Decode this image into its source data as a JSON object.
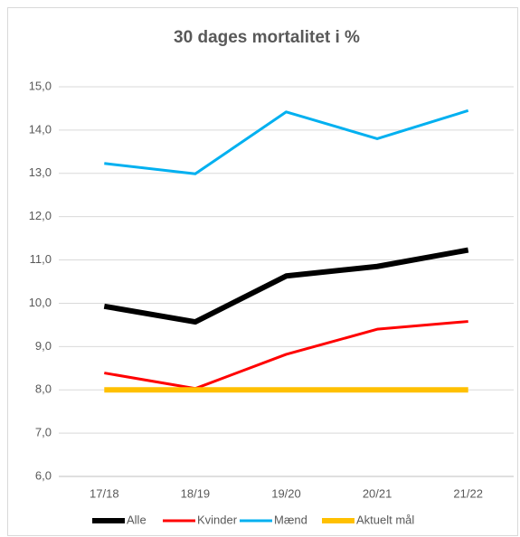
{
  "chart_data": {
    "type": "line",
    "title": "30 dages mortalitet i %",
    "categories": [
      "17/18",
      "18/19",
      "19/20",
      "20/21",
      "21/22"
    ],
    "series": [
      {
        "name": "Alle",
        "color": "#000000",
        "values": [
          9.93,
          9.57,
          10.63,
          10.85,
          11.23
        ]
      },
      {
        "name": "Kvinder",
        "color": "#ff0000",
        "values": [
          8.39,
          8.03,
          8.82,
          9.4,
          9.58
        ]
      },
      {
        "name": "Mænd",
        "color": "#00b0f0",
        "values": [
          13.23,
          12.99,
          14.42,
          13.8,
          14.45
        ]
      },
      {
        "name": "Aktuelt mål",
        "color": "#ffc000",
        "values": [
          8,
          8,
          8,
          8,
          8
        ]
      }
    ],
    "ylim": [
      6,
      15
    ],
    "yticks": [
      {
        "value": 6,
        "label": "6,0"
      },
      {
        "value": 7,
        "label": "7,0"
      },
      {
        "value": 8,
        "label": "8,0"
      },
      {
        "value": 9,
        "label": "9,0"
      },
      {
        "value": 10,
        "label": "10,0"
      },
      {
        "value": 11,
        "label": "11,0"
      },
      {
        "value": 12,
        "label": "12,0"
      },
      {
        "value": 13,
        "label": "13,0"
      },
      {
        "value": 14,
        "label": "14,0"
      },
      {
        "value": 15,
        "label": "15,0"
      }
    ],
    "grid": true,
    "legend": "bottom"
  }
}
